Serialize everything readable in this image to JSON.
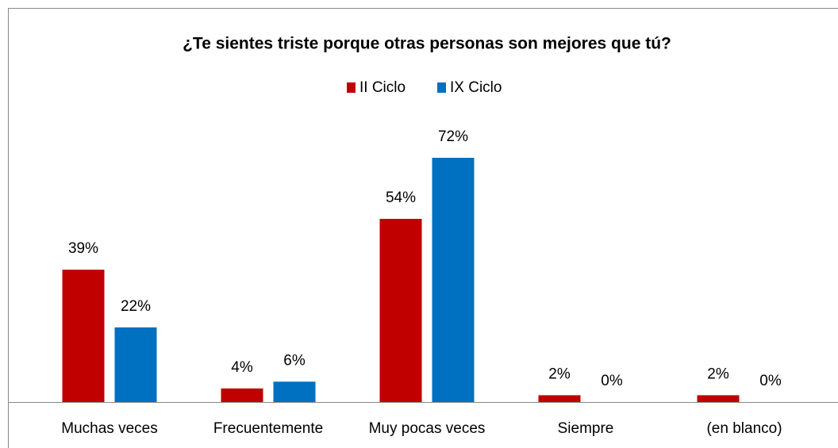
{
  "chart_data": {
    "type": "bar",
    "title": "¿Te sientes triste porque otras personas son mejores que tú?",
    "categories": [
      "Muchas veces",
      "Frecuentemente",
      "Muy pocas veces",
      "Siempre",
      "(en blanco)"
    ],
    "series": [
      {
        "name": "II Ciclo",
        "color": "#c00000",
        "values": [
          39,
          4,
          54,
          2,
          2
        ],
        "value_labels": [
          "39%",
          "4%",
          "54%",
          "2%",
          "2%"
        ]
      },
      {
        "name": "IX Ciclo",
        "color": "#0070c0",
        "values": [
          22,
          6,
          72,
          0,
          0
        ],
        "value_labels": [
          "22%",
          "6%",
          "72%",
          "0%",
          "0%"
        ]
      }
    ],
    "legend": "top"
  }
}
